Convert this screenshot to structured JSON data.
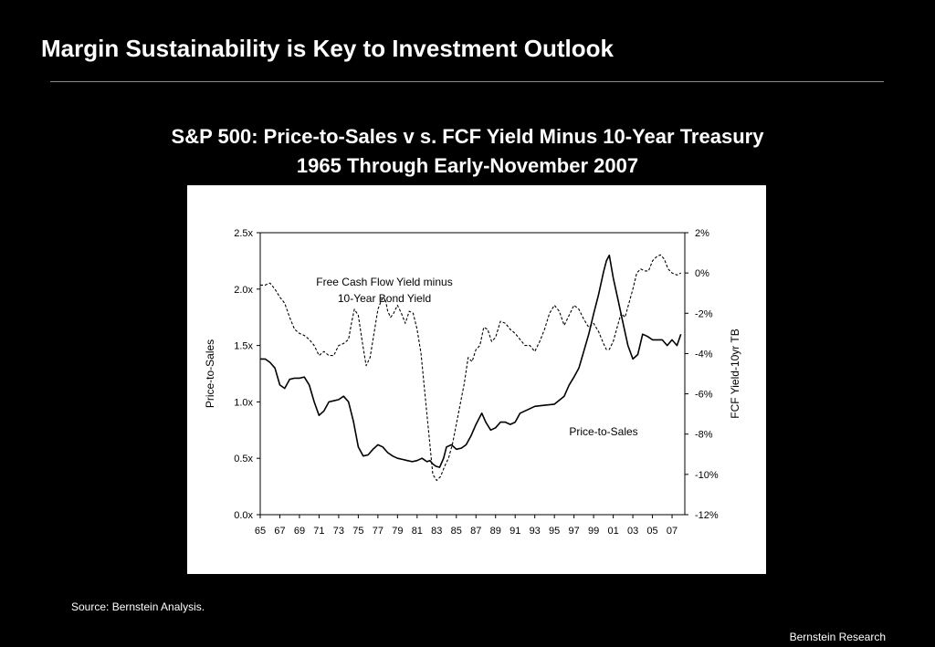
{
  "slide": {
    "title": "Margin Sustainability is Key to Investment Outlook",
    "source": "Source:  Bernstein Analysis.",
    "footer": "Bernstein Research"
  },
  "chart_data": {
    "type": "line",
    "title": "S&P 500:  Price-to-Sales v s. FCF Yield Minus 10-Year Treasury",
    "subtitle": "1965 Through Early-November 2007",
    "ylabel": "Price-to-Sales",
    "y2label": "FCF Yield-10yr TB",
    "ylim": [
      0,
      2.5
    ],
    "y2lim": [
      -12,
      2
    ],
    "xlim": [
      1965,
      2008.3
    ],
    "grid": false,
    "x_ticks": [
      1965,
      1967,
      1969,
      1971,
      1973,
      1975,
      1977,
      1979,
      1981,
      1983,
      1985,
      1987,
      1989,
      1991,
      1993,
      1995,
      1997,
      1999,
      2001,
      2003,
      2005,
      2007
    ],
    "x_tick_labels": [
      "65",
      "67",
      "69",
      "71",
      "73",
      "75",
      "77",
      "79",
      "81",
      "83",
      "85",
      "87",
      "89",
      "91",
      "93",
      "95",
      "97",
      "99",
      "01",
      "03",
      "05",
      "07"
    ],
    "y_ticks": [
      0,
      0.5,
      1.0,
      1.5,
      2.0,
      2.5
    ],
    "y_tick_labels": [
      "0.0x",
      "0.5x",
      "1.0x",
      "1.5x",
      "2.0x",
      "2.5x"
    ],
    "y2_ticks": [
      2,
      0,
      -2,
      -4,
      -6,
      -8,
      -10,
      -12
    ],
    "y2_tick_labels": [
      "2%",
      "0%",
      "-2%",
      "-4%",
      "-6%",
      "-8%",
      "-10%",
      "-12%"
    ],
    "annotations": [
      {
        "text": "Free Cash Flow Yield minus",
        "series": "fcf"
      },
      {
        "text": "10-Year Bond Yield",
        "series": "fcf"
      },
      {
        "text": "Price-to-Sales",
        "series": "ps"
      }
    ],
    "series": [
      {
        "key": "ps",
        "axis": "left",
        "style": "solid",
        "x": [
          1965,
          1965.5,
          1966,
          1966.5,
          1967,
          1967.5,
          1968,
          1968.5,
          1969,
          1969.5,
          1970,
          1970.5,
          1971,
          1971.5,
          1972,
          1972.5,
          1973,
          1973.5,
          1974,
          1974.5,
          1975,
          1975.5,
          1976,
          1976.5,
          1977,
          1977.5,
          1978,
          1978.5,
          1979,
          1979.5,
          1980,
          1980.5,
          1981,
          1981.5,
          1982,
          1982.3,
          1982.6,
          1982.9,
          1983.3,
          1983.7,
          1984,
          1984.5,
          1985,
          1985.5,
          1986,
          1986.5,
          1987,
          1987.3,
          1987.6,
          1988,
          1988.5,
          1989,
          1989.5,
          1990,
          1990.5,
          1991,
          1991.5,
          1992,
          1993,
          1994,
          1995,
          1996,
          1996.5,
          1997,
          1997.5,
          1998,
          1998.5,
          1999,
          1999.5,
          2000,
          2000.3,
          2000.6,
          2001,
          2001.5,
          2002,
          2002.5,
          2003,
          2003.5,
          2004,
          2004.5,
          2005,
          2005.5,
          2006,
          2006.5,
          2007,
          2007.5,
          2007.9
        ],
        "values": [
          1.38,
          1.38,
          1.35,
          1.3,
          1.15,
          1.12,
          1.2,
          1.21,
          1.21,
          1.22,
          1.15,
          1.0,
          0.88,
          0.92,
          1.0,
          1.01,
          1.02,
          1.05,
          1.0,
          0.83,
          0.6,
          0.52,
          0.53,
          0.58,
          0.62,
          0.6,
          0.55,
          0.52,
          0.5,
          0.49,
          0.48,
          0.47,
          0.48,
          0.5,
          0.47,
          0.48,
          0.45,
          0.43,
          0.42,
          0.5,
          0.6,
          0.62,
          0.58,
          0.59,
          0.62,
          0.7,
          0.8,
          0.85,
          0.9,
          0.82,
          0.75,
          0.77,
          0.82,
          0.82,
          0.8,
          0.82,
          0.9,
          0.92,
          0.96,
          0.97,
          0.98,
          1.05,
          1.15,
          1.22,
          1.3,
          1.45,
          1.6,
          1.78,
          1.95,
          2.15,
          2.25,
          2.3,
          2.1,
          1.9,
          1.7,
          1.5,
          1.38,
          1.42,
          1.6,
          1.58,
          1.55,
          1.55,
          1.55,
          1.5,
          1.55,
          1.5,
          1.6
        ]
      },
      {
        "key": "fcf",
        "axis": "right",
        "style": "dashed",
        "x": [
          1965,
          1965.5,
          1966,
          1966.5,
          1967,
          1967.5,
          1968,
          1968.5,
          1969,
          1969.5,
          1970,
          1970.5,
          1971,
          1971.5,
          1972,
          1972.5,
          1973,
          1973.5,
          1974,
          1974.3,
          1974.6,
          1975,
          1975.4,
          1975.8,
          1976.2,
          1976.6,
          1977,
          1977.4,
          1977.8,
          1978,
          1978.3,
          1978.6,
          1979,
          1979.4,
          1979.8,
          1980.2,
          1980.6,
          1981,
          1981.4,
          1981.8,
          1982.2,
          1982.6,
          1983,
          1983.4,
          1983.8,
          1984.2,
          1984.6,
          1985,
          1985.4,
          1985.8,
          1986.2,
          1986.6,
          1987,
          1987.4,
          1987.8,
          1988.2,
          1988.6,
          1989,
          1989.5,
          1990,
          1990.5,
          1991,
          1991.5,
          1992,
          1992.5,
          1993,
          1993.5,
          1994,
          1994.5,
          1995,
          1995.5,
          1996,
          1996.5,
          1997,
          1997.5,
          1998,
          1998.5,
          1999,
          1999.5,
          2000,
          2000.3,
          2000.6,
          2001,
          2001.4,
          2001.8,
          2002.2,
          2002.6,
          2003,
          2003.4,
          2003.8,
          2004.2,
          2004.6,
          2005,
          2005.4,
          2005.8,
          2006.2,
          2006.6,
          2007,
          2007.5,
          2007.9
        ],
        "values": [
          -0.6,
          -0.6,
          -0.5,
          -0.8,
          -1.2,
          -1.5,
          -2.2,
          -2.8,
          -3.0,
          -3.1,
          -3.3,
          -3.6,
          -4.1,
          -3.9,
          -4.1,
          -4.1,
          -3.6,
          -3.5,
          -3.3,
          -2.5,
          -1.8,
          -2.1,
          -3.4,
          -4.6,
          -4.2,
          -3.0,
          -1.8,
          -1.3,
          -1.4,
          -1.9,
          -2.2,
          -2.0,
          -1.6,
          -2.0,
          -2.5,
          -1.9,
          -2.0,
          -2.8,
          -4.0,
          -6.0,
          -8.0,
          -10.0,
          -10.3,
          -10.1,
          -9.6,
          -9.2,
          -8.5,
          -7.5,
          -6.5,
          -5.5,
          -4.2,
          -4.4,
          -3.8,
          -3.6,
          -2.7,
          -2.8,
          -3.4,
          -3.2,
          -2.4,
          -2.5,
          -2.8,
          -3.0,
          -3.3,
          -3.6,
          -3.6,
          -3.9,
          -3.4,
          -2.8,
          -2.0,
          -1.6,
          -1.9,
          -2.6,
          -2.1,
          -1.6,
          -1.8,
          -2.3,
          -2.7,
          -2.5,
          -2.9,
          -3.5,
          -3.8,
          -3.8,
          -3.4,
          -2.7,
          -2.0,
          -2.2,
          -1.5,
          -0.8,
          0.0,
          0.2,
          0.1,
          0.1,
          0.6,
          0.8,
          0.9,
          0.7,
          0.2,
          0.0,
          -0.1,
          0.0
        ]
      }
    ]
  }
}
